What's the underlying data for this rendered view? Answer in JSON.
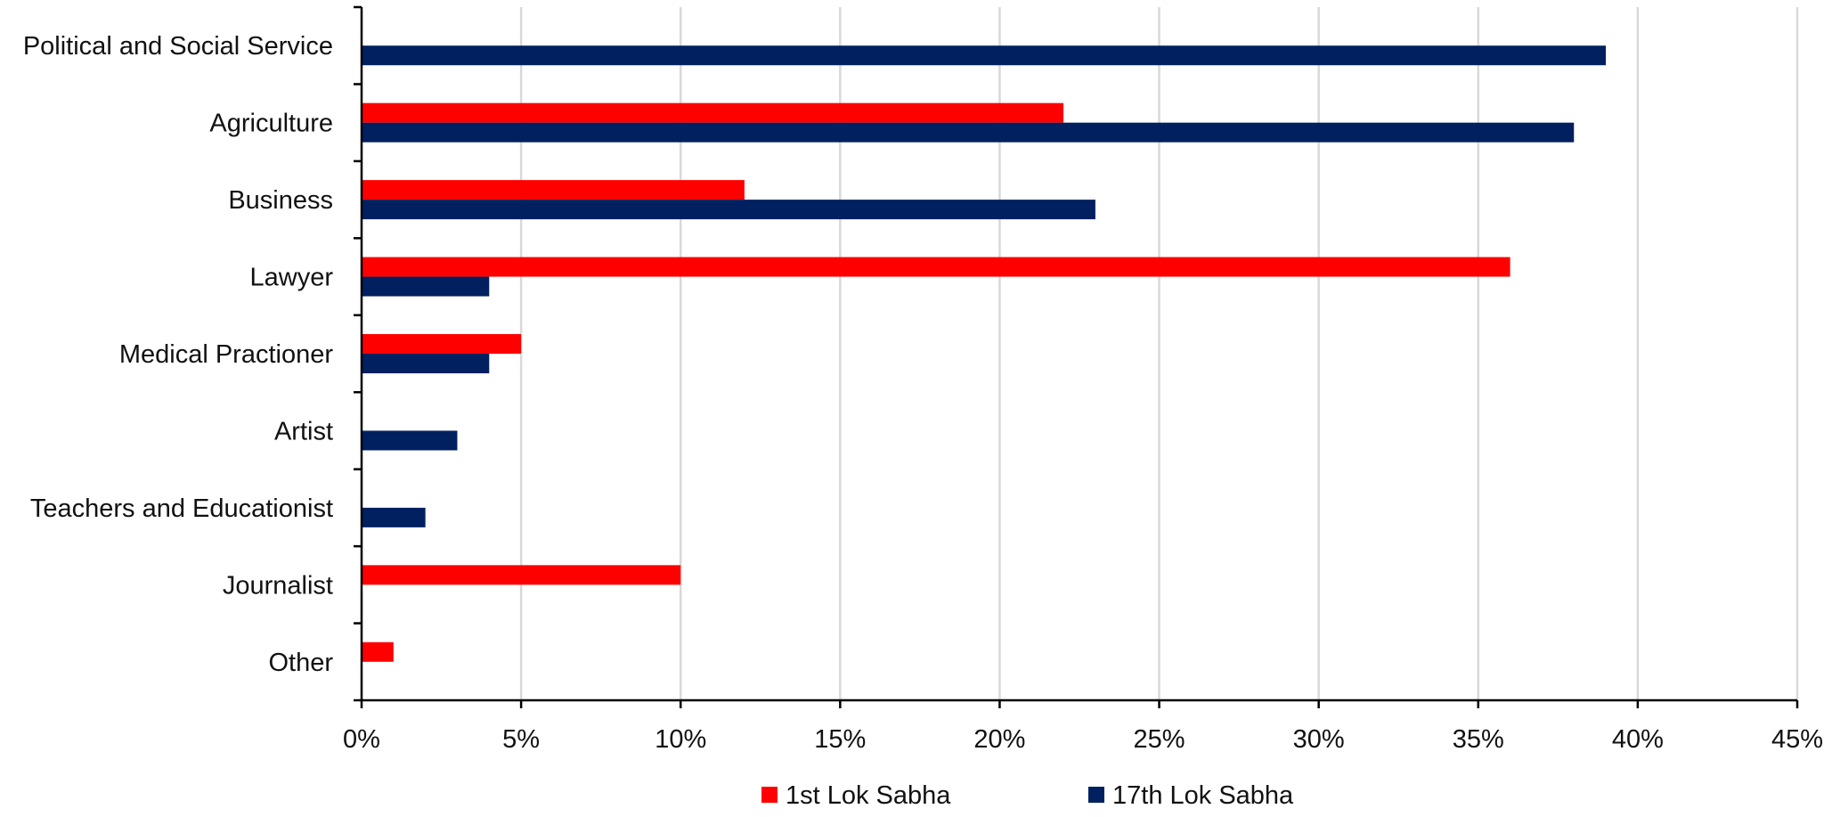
{
  "chart_data": {
    "type": "bar",
    "orientation": "horizontal",
    "categories": [
      "Political and Social Service",
      "Agriculture",
      "Business",
      "Lawyer",
      "Medical Practioner",
      "Artist",
      "Teachers and Educationist",
      "Journalist",
      "Other"
    ],
    "series": [
      {
        "name": "1st Lok Sabha",
        "color": "#FF0000",
        "values": [
          0,
          22,
          12,
          36,
          5,
          0,
          0,
          10,
          1
        ]
      },
      {
        "name": "17th Lok Sabha",
        "color": "#002060",
        "values": [
          39,
          38,
          23,
          4,
          4,
          3,
          2,
          0,
          0
        ]
      }
    ],
    "xlim": [
      0,
      45
    ],
    "xticks": [
      0,
      5,
      10,
      15,
      20,
      25,
      30,
      35,
      40,
      45
    ],
    "xtick_labels": [
      "0%",
      "5%",
      "10%",
      "15%",
      "20%",
      "25%",
      "30%",
      "35%",
      "40%",
      "45%"
    ],
    "title": "",
    "xlabel": "",
    "ylabel": "",
    "grid": "vertical",
    "grid_color": "#D9D9D9",
    "legend_position": "bottom"
  }
}
